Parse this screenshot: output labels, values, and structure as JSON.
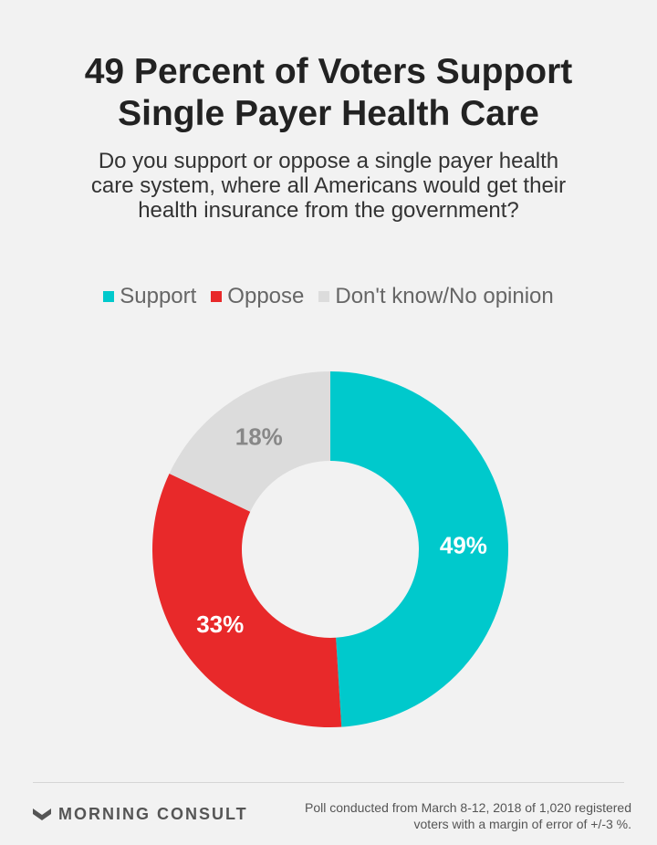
{
  "header": {
    "title_line1": "49 Percent of Voters Support",
    "title_line2": "Single Payer Health Care",
    "subtitle_line1": "Do you support or oppose a single payer health",
    "subtitle_line2": "care system, where all Americans would get their",
    "subtitle_line3": "health insurance from the government?"
  },
  "chart_data": {
    "type": "pie",
    "donut": true,
    "legend_position": "top",
    "slices": [
      {
        "name": "Support",
        "value": 49,
        "label": "49%",
        "color": "#00c9cc",
        "label_color": "#ffffff"
      },
      {
        "name": "Oppose",
        "value": 33,
        "label": "33%",
        "color": "#e8292a",
        "label_color": "#ffffff"
      },
      {
        "name": "Don't know/No opinion",
        "value": 18,
        "label": "18%",
        "color": "#dcdcdc",
        "label_color": "#888888"
      }
    ]
  },
  "footer": {
    "logo_text": "MORNING CONSULT",
    "logo_icon": "morning-consult-chevron-icon",
    "note_line1": "Poll conducted from March 8-12, 2018 of 1,020 registered",
    "note_line2": "voters with a margin of error of +/-3 %."
  }
}
